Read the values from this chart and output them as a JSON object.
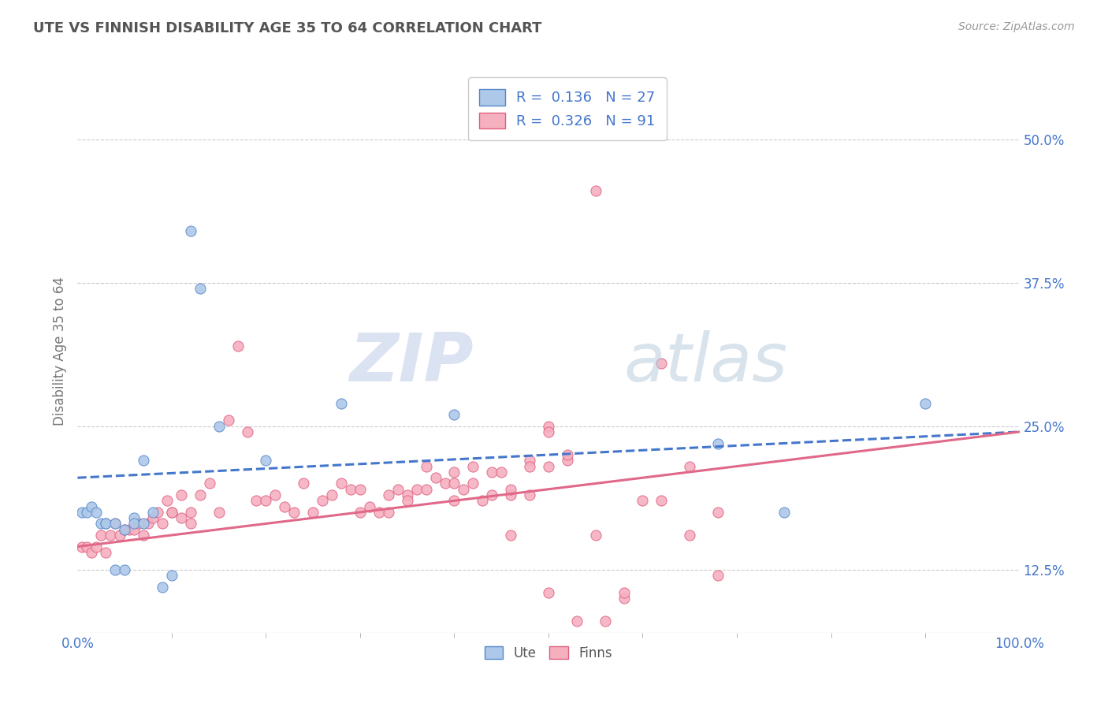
{
  "title": "UTE VS FINNISH DISABILITY AGE 35 TO 64 CORRELATION CHART",
  "source_text": "Source: ZipAtlas.com",
  "ylabel": "Disability Age 35 to 64",
  "xlim": [
    0.0,
    1.0
  ],
  "ylim": [
    0.07,
    0.56
  ],
  "ytick_labels": [
    "12.5%",
    "25.0%",
    "37.5%",
    "50.0%"
  ],
  "ytick_values": [
    0.125,
    0.25,
    0.375,
    0.5
  ],
  "legend_line1": "R =  0.136   N = 27",
  "legend_line2": "R =  0.326   N = 91",
  "ute_color": "#adc8e8",
  "finn_color": "#f5b0c0",
  "ute_edge_color": "#5588cc",
  "finn_edge_color": "#e06080",
  "ute_line_color": "#4477cc",
  "finn_line_color": "#e06888",
  "background_color": "#ffffff",
  "grid_color": "#cccccc",
  "title_color": "#555555",
  "label_color": "#4477cc",
  "ute_scatter_x": [
    0.005,
    0.01,
    0.015,
    0.02,
    0.025,
    0.03,
    0.03,
    0.04,
    0.04,
    0.05,
    0.05,
    0.06,
    0.06,
    0.07,
    0.07,
    0.08,
    0.09,
    0.1,
    0.12,
    0.13,
    0.15,
    0.2,
    0.28,
    0.4,
    0.68,
    0.75,
    0.9
  ],
  "ute_scatter_y": [
    0.175,
    0.175,
    0.18,
    0.175,
    0.165,
    0.165,
    0.165,
    0.165,
    0.125,
    0.16,
    0.125,
    0.17,
    0.165,
    0.165,
    0.22,
    0.175,
    0.11,
    0.12,
    0.42,
    0.37,
    0.25,
    0.22,
    0.27,
    0.26,
    0.235,
    0.175,
    0.27
  ],
  "finn_scatter_x": [
    0.005,
    0.01,
    0.015,
    0.02,
    0.025,
    0.03,
    0.035,
    0.04,
    0.045,
    0.05,
    0.055,
    0.06,
    0.065,
    0.07,
    0.075,
    0.08,
    0.085,
    0.09,
    0.095,
    0.1,
    0.1,
    0.11,
    0.11,
    0.12,
    0.12,
    0.13,
    0.14,
    0.15,
    0.16,
    0.17,
    0.18,
    0.19,
    0.2,
    0.21,
    0.22,
    0.23,
    0.24,
    0.25,
    0.26,
    0.27,
    0.28,
    0.29,
    0.3,
    0.31,
    0.32,
    0.33,
    0.34,
    0.35,
    0.36,
    0.37,
    0.38,
    0.39,
    0.4,
    0.41,
    0.42,
    0.44,
    0.46,
    0.48,
    0.5,
    0.52,
    0.3,
    0.33,
    0.35,
    0.37,
    0.4,
    0.45,
    0.48,
    0.5,
    0.52,
    0.55,
    0.58,
    0.6,
    0.62,
    0.65,
    0.68,
    0.55,
    0.58,
    0.62,
    0.65,
    0.68,
    0.4,
    0.43,
    0.46,
    0.5,
    0.53,
    0.56,
    0.42,
    0.44,
    0.46,
    0.48,
    0.5
  ],
  "finn_scatter_y": [
    0.145,
    0.145,
    0.14,
    0.145,
    0.155,
    0.14,
    0.155,
    0.165,
    0.155,
    0.16,
    0.16,
    0.16,
    0.165,
    0.155,
    0.165,
    0.17,
    0.175,
    0.165,
    0.185,
    0.175,
    0.175,
    0.17,
    0.19,
    0.165,
    0.175,
    0.19,
    0.2,
    0.175,
    0.255,
    0.32,
    0.245,
    0.185,
    0.185,
    0.19,
    0.18,
    0.175,
    0.2,
    0.175,
    0.185,
    0.19,
    0.2,
    0.195,
    0.195,
    0.18,
    0.175,
    0.19,
    0.195,
    0.19,
    0.195,
    0.215,
    0.205,
    0.2,
    0.21,
    0.195,
    0.2,
    0.21,
    0.19,
    0.22,
    0.25,
    0.22,
    0.175,
    0.175,
    0.185,
    0.195,
    0.2,
    0.21,
    0.215,
    0.245,
    0.225,
    0.455,
    0.1,
    0.185,
    0.185,
    0.215,
    0.175,
    0.155,
    0.105,
    0.305,
    0.155,
    0.12,
    0.185,
    0.185,
    0.155,
    0.105,
    0.08,
    0.08,
    0.215,
    0.19,
    0.195,
    0.19,
    0.215
  ],
  "watermark_zip": "ZIP",
  "watermark_atlas": "atlas",
  "ute_trend_x0": 0.0,
  "ute_trend_y0": 0.205,
  "ute_trend_x1": 1.0,
  "ute_trend_y1": 0.245,
  "finn_trend_x0": 0.0,
  "finn_trend_y0": 0.145,
  "finn_trend_x1": 1.0,
  "finn_trend_y1": 0.245
}
